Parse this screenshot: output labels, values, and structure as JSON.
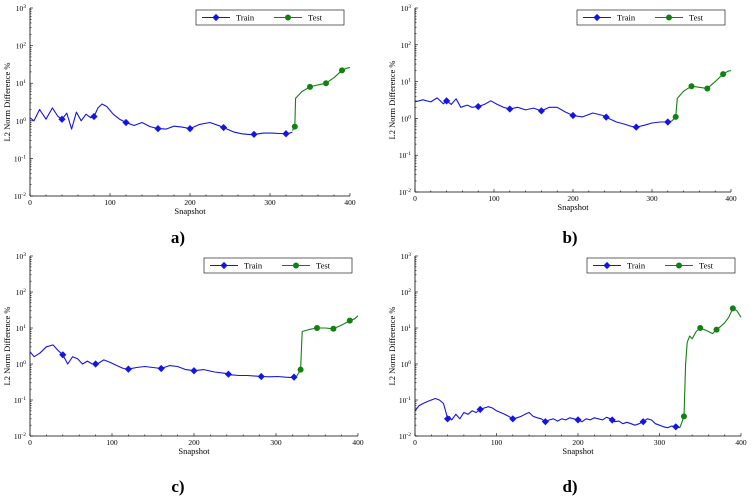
{
  "colors": {
    "train": "#1414e6",
    "test": "#128012"
  },
  "chart_data": [
    {
      "panel_label": "a)",
      "type": "line",
      "xlabel": "Snapshot",
      "ylabel": "L2 Norm Difference %",
      "yscale": "log",
      "xlim": [
        0,
        400
      ],
      "ylim_exp": [
        -2,
        3
      ],
      "xticks": [
        0,
        100,
        200,
        300,
        400
      ],
      "legend": [
        "Train",
        "Test"
      ],
      "series": [
        {
          "name": "Train",
          "x": [
            0,
            5,
            12,
            20,
            28,
            35,
            40,
            46,
            52,
            58,
            64,
            70,
            76,
            80,
            85,
            90,
            96,
            104,
            112,
            120,
            130,
            140,
            150,
            160,
            170,
            180,
            190,
            200,
            212,
            225,
            238,
            245,
            255,
            265,
            275,
            282,
            292,
            302,
            312,
            322,
            328
          ],
          "y": [
            1.2,
            1.0,
            2.0,
            1.1,
            2.2,
            1.3,
            1.1,
            1.6,
            0.6,
            1.7,
            1.0,
            1.5,
            1.2,
            1.3,
            2.2,
            2.8,
            2.4,
            1.5,
            1.1,
            0.9,
            0.75,
            0.9,
            0.7,
            0.62,
            0.6,
            0.72,
            0.68,
            0.62,
            0.8,
            0.9,
            0.72,
            0.62,
            0.5,
            0.45,
            0.43,
            0.44,
            0.47,
            0.47,
            0.46,
            0.45,
            0.5
          ],
          "marker_x": [
            40,
            80,
            120,
            160,
            200,
            242,
            280,
            320
          ]
        },
        {
          "name": "Test",
          "x": [
            328,
            331,
            332,
            340,
            350,
            360,
            370,
            380,
            390,
            396,
            400
          ],
          "y": [
            0.55,
            0.7,
            4,
            6,
            8,
            9,
            10,
            14,
            22,
            25,
            26
          ],
          "marker_x": [
            331,
            350,
            370,
            390
          ]
        }
      ]
    },
    {
      "panel_label": "b)",
      "type": "line",
      "xlabel": "Snapshot",
      "ylabel": "L2 Norm Difference %",
      "yscale": "log",
      "xlim": [
        0,
        400
      ],
      "ylim_exp": [
        -2,
        3
      ],
      "xticks": [
        0,
        100,
        200,
        300,
        400
      ],
      "legend": [
        "Train",
        "Test"
      ],
      "series": [
        {
          "name": "Train",
          "x": [
            0,
            10,
            20,
            28,
            36,
            40,
            46,
            52,
            58,
            66,
            72,
            80,
            88,
            96,
            104,
            112,
            120,
            130,
            140,
            150,
            160,
            170,
            180,
            190,
            200,
            212,
            225,
            238,
            245,
            255,
            265,
            275,
            280,
            290,
            300,
            310,
            320,
            325
          ],
          "y": [
            2.8,
            3.2,
            2.8,
            3.6,
            2.5,
            3.0,
            2.4,
            3.4,
            2.0,
            2.3,
            2.0,
            2.1,
            2.4,
            3.0,
            2.4,
            2.0,
            1.8,
            2.0,
            1.7,
            1.9,
            1.6,
            2.0,
            2.0,
            1.5,
            1.2,
            1.1,
            1.4,
            1.2,
            1.0,
            0.8,
            0.7,
            0.6,
            0.58,
            0.65,
            0.75,
            0.8,
            0.8,
            0.85
          ],
          "marker_x": [
            40,
            80,
            120,
            160,
            200,
            242,
            280,
            320
          ]
        },
        {
          "name": "Test",
          "x": [
            325,
            330,
            332,
            340,
            350,
            360,
            370,
            380,
            390,
            396,
            400
          ],
          "y": [
            0.85,
            1.1,
            3.5,
            5.5,
            7.5,
            7.0,
            6.5,
            10,
            16,
            19,
            20
          ],
          "marker_x": [
            330,
            350,
            370,
            390
          ]
        }
      ]
    },
    {
      "panel_label": "c)",
      "type": "line",
      "xlabel": "Snapshot",
      "ylabel": "L2 Norm Difference %",
      "yscale": "log",
      "xlim": [
        0,
        400
      ],
      "ylim_exp": [
        -2,
        3
      ],
      "xticks": [
        0,
        100,
        200,
        300,
        400
      ],
      "legend": [
        "Train",
        "Test"
      ],
      "series": [
        {
          "name": "Train",
          "x": [
            0,
            5,
            12,
            20,
            28,
            34,
            40,
            46,
            52,
            58,
            64,
            70,
            76,
            82,
            90,
            98,
            106,
            114,
            120,
            130,
            140,
            150,
            160,
            170,
            180,
            190,
            200,
            212,
            225,
            238,
            245,
            255,
            265,
            275,
            282,
            292,
            302,
            312,
            320,
            325
          ],
          "y": [
            2.2,
            1.6,
            2.0,
            3.0,
            3.4,
            2.4,
            1.8,
            1.0,
            1.6,
            1.4,
            1.0,
            1.2,
            1.0,
            1.0,
            1.3,
            1.1,
            0.9,
            0.75,
            0.72,
            0.8,
            0.85,
            0.8,
            0.75,
            0.9,
            0.85,
            0.7,
            0.65,
            0.7,
            0.6,
            0.55,
            0.5,
            0.48,
            0.48,
            0.46,
            0.45,
            0.44,
            0.45,
            0.43,
            0.42,
            0.45
          ],
          "marker_x": [
            40,
            80,
            120,
            160,
            200,
            242,
            282,
            322
          ]
        },
        {
          "name": "Test",
          "x": [
            325,
            330,
            332,
            340,
            350,
            360,
            370,
            380,
            390,
            396,
            400
          ],
          "y": [
            0.45,
            0.7,
            8,
            9,
            10,
            10,
            9.5,
            12,
            16,
            18,
            22
          ],
          "marker_x": [
            330,
            350,
            370,
            390
          ]
        }
      ]
    },
    {
      "panel_label": "d)",
      "type": "line",
      "xlabel": "Snapshot",
      "ylabel": "L2 Norm Difference %",
      "yscale": "log",
      "xlim": [
        0,
        400
      ],
      "ylim_exp": [
        -2,
        3
      ],
      "xticks": [
        0,
        100,
        200,
        300,
        400
      ],
      "legend": [
        "Train",
        "Test"
      ],
      "series": [
        {
          "name": "Train",
          "x": [
            0,
            5,
            10,
            15,
            20,
            25,
            30,
            35,
            38,
            40,
            42,
            45,
            50,
            55,
            60,
            65,
            70,
            75,
            80,
            85,
            90,
            95,
            100,
            105,
            110,
            115,
            120,
            125,
            130,
            135,
            140,
            145,
            150,
            155,
            160,
            165,
            170,
            175,
            180,
            185,
            190,
            195,
            200,
            205,
            210,
            215,
            220,
            225,
            230,
            235,
            240,
            245,
            250,
            255,
            260,
            265,
            270,
            275,
            280,
            285,
            290,
            295,
            300,
            305,
            310,
            315,
            320,
            325
          ],
          "y": [
            0.05,
            0.07,
            0.08,
            0.09,
            0.1,
            0.11,
            0.1,
            0.08,
            0.045,
            0.03,
            0.035,
            0.028,
            0.04,
            0.03,
            0.045,
            0.04,
            0.05,
            0.045,
            0.055,
            0.06,
            0.065,
            0.06,
            0.05,
            0.045,
            0.04,
            0.035,
            0.03,
            0.032,
            0.035,
            0.04,
            0.045,
            0.035,
            0.032,
            0.03,
            0.025,
            0.028,
            0.03,
            0.026,
            0.03,
            0.028,
            0.032,
            0.03,
            0.028,
            0.025,
            0.03,
            0.028,
            0.032,
            0.03,
            0.028,
            0.033,
            0.03,
            0.025,
            0.026,
            0.022,
            0.024,
            0.022,
            0.02,
            0.022,
            0.025,
            0.03,
            0.028,
            0.022,
            0.02,
            0.018,
            0.017,
            0.019,
            0.018,
            0.017
          ],
          "marker_x": [
            40,
            80,
            120,
            160,
            200,
            242,
            280,
            320
          ]
        },
        {
          "name": "Test",
          "x": [
            325,
            330,
            332,
            334,
            337,
            340,
            345,
            350,
            355,
            360,
            365,
            370,
            375,
            380,
            385,
            390,
            395,
            400
          ],
          "y": [
            0.017,
            0.035,
            1.0,
            4,
            6,
            5,
            8,
            10,
            9,
            8,
            7,
            9,
            11,
            14,
            20,
            35,
            30,
            20
          ],
          "marker_x": [
            330,
            350,
            370,
            390
          ]
        }
      ]
    }
  ]
}
